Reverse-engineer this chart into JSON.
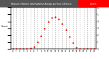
{
  "hours": [
    0,
    1,
    2,
    3,
    4,
    5,
    6,
    7,
    8,
    9,
    10,
    11,
    12,
    13,
    14,
    15,
    16,
    17,
    18,
    19,
    20,
    21,
    22,
    23
  ],
  "radiation": [
    0,
    0,
    0,
    0,
    0.02,
    0.08,
    0.35,
    1.0,
    1.9,
    3.0,
    4.0,
    4.6,
    4.65,
    4.4,
    3.7,
    2.8,
    1.8,
    0.95,
    0.25,
    0.04,
    0.01,
    0,
    0,
    0
  ],
  "dot_color": "#ff0000",
  "grid_color": "#aaaaaa",
  "bg_color": "#ffffff",
  "title_bg": "#555555",
  "title_color": "#ffffff",
  "title": "Milwaukee Weather Solar Radiation Average per Hour (24 Hours)",
  "legend_color": "#ff0000",
  "legend_label": "Current",
  "xlim": [
    -0.5,
    23.5
  ],
  "ylim": [
    0,
    6
  ],
  "xticks": [
    0,
    1,
    2,
    3,
    4,
    5,
    6,
    7,
    8,
    9,
    10,
    11,
    12,
    13,
    14,
    15,
    16,
    17,
    18,
    19,
    20,
    21,
    22,
    23
  ],
  "yticks": [
    0,
    1,
    2,
    3,
    4,
    5,
    6
  ],
  "dot_size": 3,
  "grid_linestyle": "--",
  "grid_linewidth": 0.4,
  "left_label": "Current"
}
